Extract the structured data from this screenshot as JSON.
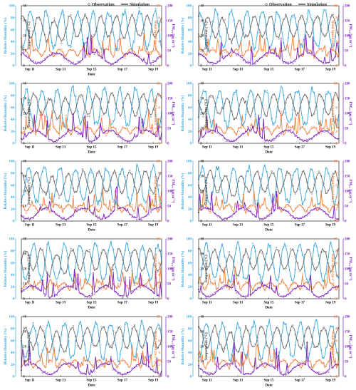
{
  "figure": {
    "legend": {
      "observation": "Observation",
      "simulation": "Simulation"
    },
    "colors": {
      "rh": "#3aa6dc",
      "temp": "#6b6b6b",
      "wind": "#f07f3c",
      "pm": "#7a1fb8",
      "axis": "#000000"
    }
  },
  "chart_data": [
    {
      "type": "line",
      "xlabel": "Date",
      "x_categories": [
        "Sep 11",
        "Sep 13",
        "Sep 15",
        "Sep 17",
        "Sep 19"
      ],
      "axes": {
        "rh": {
          "label": "Relative Humidity (%)",
          "range": [
            0,
            100
          ],
          "ticks": [
            0,
            20,
            40,
            60,
            80,
            100
          ]
        },
        "temp": {
          "label": "Temperature (°C)",
          "range": [
            0,
            40
          ],
          "ticks": [
            0,
            10,
            20,
            30,
            40
          ]
        },
        "wind": {
          "label": "Wind Speed (m s⁻¹)",
          "range": [
            0,
            10
          ],
          "ticks": [
            0,
            2,
            4,
            6,
            8,
            10
          ]
        },
        "pm": {
          "label": "PM₂.₅ (μg m⁻³)",
          "range": [
            0,
            200
          ],
          "ticks": [
            0,
            50,
            100,
            150,
            200
          ]
        }
      },
      "series": [
        {
          "name": "Observation",
          "style": "markers"
        },
        {
          "name": "Simulation",
          "style": "line"
        }
      ]
    },
    {
      "type": "line",
      "xlabel": "",
      "x_categories": [
        "Sep 11",
        "Sep 13",
        "Sep 15",
        "Sep 17",
        "Sep 19"
      ],
      "axes": {
        "rh": {
          "label": "Relative Humidity (%)",
          "range": [
            0,
            100
          ],
          "ticks": [
            0,
            20,
            40,
            60,
            80,
            100
          ]
        },
        "temp": {
          "label": "Temperature (°C)",
          "range": [
            0,
            40
          ],
          "ticks": [
            0,
            10,
            20,
            30,
            40
          ]
        },
        "wind": {
          "label": "Wind Speed (m s⁻¹)",
          "range": [
            0,
            10
          ],
          "ticks": [
            0,
            2,
            4,
            6,
            8,
            10
          ]
        },
        "pm": {
          "label": "PM₂.₅ (μg m⁻³)",
          "range": [
            0,
            200
          ],
          "ticks": [
            0,
            50,
            100,
            150,
            200
          ]
        }
      },
      "series": [
        {
          "name": "Observation",
          "style": "markers"
        },
        {
          "name": "Simulation",
          "style": "line"
        }
      ]
    },
    {
      "type": "line",
      "xlabel": "Date",
      "x_categories": [
        "Sep 11",
        "Sep 13",
        "Sep 15",
        "Sep 17",
        "Sep 19"
      ],
      "axes": {
        "rh": {
          "label": "Relative Humidity (%)",
          "range": [
            0,
            100
          ],
          "ticks": [
            0,
            20,
            40,
            60,
            80,
            100
          ]
        },
        "temp": {
          "label": "Temperature (°C)",
          "range": [
            0,
            40
          ],
          "ticks": [
            0,
            10,
            20,
            30,
            40
          ]
        },
        "wind": {
          "label": "Wind Speed (m s⁻¹)",
          "range": [
            0,
            10
          ],
          "ticks": [
            0,
            2,
            4,
            6,
            8,
            10
          ]
        },
        "pm": {
          "label": "PM₂.₅ (μg m⁻³)",
          "range": [
            0,
            200
          ],
          "ticks": [
            0,
            50,
            100,
            150,
            200
          ]
        }
      },
      "series": [
        {
          "name": "Observation",
          "style": "markers"
        },
        {
          "name": "Simulation",
          "style": "line"
        }
      ]
    },
    {
      "type": "line",
      "xlabel": "Date",
      "x_categories": [
        "Sep 11",
        "Sep 13",
        "Sep 15",
        "Sep 17",
        "Sep 19"
      ],
      "axes": {
        "rh": {
          "label": "Relative Humidity (%)",
          "range": [
            0,
            100
          ],
          "ticks": [
            0,
            20,
            40,
            60,
            80,
            100
          ]
        },
        "temp": {
          "label": "Temperature (°C)",
          "range": [
            0,
            40
          ],
          "ticks": [
            0,
            10,
            20,
            30,
            40
          ]
        },
        "wind": {
          "label": "Wind Speed (m s⁻¹)",
          "range": [
            0,
            10
          ],
          "ticks": [
            0,
            2,
            4,
            6,
            8,
            10
          ]
        },
        "pm": {
          "label": "PM₂.₅ (μg m⁻³)",
          "range": [
            0,
            200
          ],
          "ticks": [
            0,
            50,
            100,
            150,
            200
          ]
        }
      },
      "series": [
        {
          "name": "Observation",
          "style": "markers"
        },
        {
          "name": "Simulation",
          "style": "line"
        }
      ]
    },
    {
      "type": "line",
      "xlabel": "Date",
      "x_categories": [
        "Sep 11",
        "Sep 13",
        "Sep 15",
        "Sep 17",
        "Sep 19"
      ],
      "axes": {
        "rh": {
          "label": "Relative Humidity (%)",
          "range": [
            0,
            100
          ],
          "ticks": [
            0,
            20,
            40,
            60,
            80,
            100
          ]
        },
        "temp": {
          "label": "Temperature (°C)",
          "range": [
            0,
            40
          ],
          "ticks": [
            0,
            10,
            20,
            30,
            40
          ]
        },
        "wind": {
          "label": "Wind Speed (m s⁻¹)",
          "range": [
            0,
            10
          ],
          "ticks": [
            0,
            2,
            4,
            6,
            8,
            10
          ]
        },
        "pm": {
          "label": "PM₂.₅ (μg m⁻³)",
          "range": [
            0,
            200
          ],
          "ticks": [
            0,
            50,
            100,
            150,
            200
          ]
        }
      },
      "series": [
        {
          "name": "Observation",
          "style": "markers"
        },
        {
          "name": "Simulation",
          "style": "line"
        }
      ]
    },
    {
      "type": "line",
      "xlabel": "Date",
      "x_categories": [
        "Sep 11",
        "Sep 13",
        "Sep 15",
        "Sep 17",
        "Sep 19"
      ],
      "axes": {
        "rh": {
          "label": "Relative Humidity (%)",
          "range": [
            0,
            100
          ],
          "ticks": [
            0,
            20,
            40,
            60,
            80,
            100
          ]
        },
        "temp": {
          "label": "Temperature (°C)",
          "range": [
            0,
            40
          ],
          "ticks": [
            0,
            10,
            20,
            30,
            40
          ]
        },
        "wind": {
          "label": "Wind Speed (m s⁻¹)",
          "range": [
            0,
            10
          ],
          "ticks": [
            0,
            2,
            4,
            6,
            8,
            10
          ]
        },
        "pm": {
          "label": "PM₂.₅ (μg m⁻³)",
          "range": [
            0,
            200
          ],
          "ticks": [
            0,
            50,
            100,
            150,
            200
          ]
        }
      },
      "series": [
        {
          "name": "Observation",
          "style": "markers"
        },
        {
          "name": "Simulation",
          "style": "line"
        }
      ]
    },
    {
      "type": "line",
      "xlabel": "Date",
      "x_categories": [
        "Sep 11",
        "Sep 13",
        "Sep 15",
        "Sep 17",
        "Sep 19"
      ],
      "axes": {
        "rh": {
          "label": "Relative Humidity (%)",
          "range": [
            0,
            100
          ],
          "ticks": [
            0,
            20,
            40,
            60,
            80,
            100
          ]
        },
        "temp": {
          "label": "Temperature (°C)",
          "range": [
            0,
            40
          ],
          "ticks": [
            0,
            10,
            20,
            30,
            40
          ]
        },
        "wind": {
          "label": "Wind Speed (m s⁻¹)",
          "range": [
            0,
            10
          ],
          "ticks": [
            0,
            2,
            4,
            6,
            8,
            10
          ]
        },
        "pm": {
          "label": "PM₂.₅ (μg m⁻³)",
          "range": [
            0,
            200
          ],
          "ticks": [
            0,
            50,
            100,
            150,
            200
          ]
        }
      },
      "series": [
        {
          "name": "Observation",
          "style": "markers"
        },
        {
          "name": "Simulation",
          "style": "line"
        }
      ]
    },
    {
      "type": "line",
      "xlabel": "Date",
      "x_categories": [
        "Sep 11",
        "Sep 13",
        "Sep 15",
        "Sep 17",
        "Sep 19"
      ],
      "axes": {
        "rh": {
          "label": "Relative Humidity (%)",
          "range": [
            0,
            100
          ],
          "ticks": [
            0,
            20,
            40,
            60,
            80,
            100
          ]
        },
        "temp": {
          "label": "Temperature (°C)",
          "range": [
            0,
            40
          ],
          "ticks": [
            0,
            10,
            20,
            30,
            40
          ]
        },
        "wind": {
          "label": "Wind Speed (m s⁻¹)",
          "range": [
            0,
            10
          ],
          "ticks": [
            0,
            2,
            4,
            6,
            8,
            10
          ]
        },
        "pm": {
          "label": "PM₂.₅ (μg m⁻³)",
          "range": [
            0,
            200
          ],
          "ticks": [
            0,
            50,
            100,
            150,
            200
          ]
        }
      },
      "series": [
        {
          "name": "Observation",
          "style": "markers"
        },
        {
          "name": "Simulation",
          "style": "line"
        }
      ]
    },
    {
      "type": "line",
      "xlabel": "Date",
      "x_categories": [
        "Sep 11",
        "Sep 13",
        "Sep 15",
        "Sep 17",
        "Sep 19"
      ],
      "axes": {
        "rh": {
          "label": "Relative Humidity (%)",
          "range": [
            0,
            100
          ],
          "ticks": [
            0,
            20,
            40,
            60,
            80,
            100
          ]
        },
        "temp": {
          "label": "Temperature (°C)",
          "range": [
            0,
            40
          ],
          "ticks": [
            0,
            10,
            20,
            30,
            40
          ]
        },
        "wind": {
          "label": "Wind Speed (m s⁻¹)",
          "range": [
            0,
            10
          ],
          "ticks": [
            0,
            2,
            4,
            6,
            8,
            10
          ]
        },
        "pm": {
          "label": "PM₂.₅ (μg m⁻³)",
          "range": [
            0,
            200
          ],
          "ticks": [
            0,
            50,
            100,
            150,
            200
          ]
        }
      },
      "series": [
        {
          "name": "Observation",
          "style": "markers"
        },
        {
          "name": "Simulation",
          "style": "line"
        }
      ]
    },
    {
      "type": "line",
      "xlabel": "Date",
      "x_categories": [
        "Sep 11",
        "Sep 13",
        "Sep 15",
        "Sep 17",
        "Sep 19"
      ],
      "axes": {
        "rh": {
          "label": "Relative Humidity (%)",
          "range": [
            0,
            100
          ],
          "ticks": [
            0,
            20,
            40,
            60,
            80,
            100
          ]
        },
        "temp": {
          "label": "Temperature (°C)",
          "range": [
            0,
            40
          ],
          "ticks": [
            0,
            10,
            20,
            30,
            40
          ]
        },
        "wind": {
          "label": "Wind Speed (m s⁻¹)",
          "range": [
            0,
            10
          ],
          "ticks": [
            0,
            2,
            4,
            6,
            8,
            10
          ]
        },
        "pm": {
          "label": "PM₂.₅ (μg m⁻³)",
          "range": [
            0,
            200
          ],
          "ticks": [
            0,
            50,
            100,
            150,
            200
          ]
        }
      },
      "series": [
        {
          "name": "Observation",
          "style": "markers"
        },
        {
          "name": "Simulation",
          "style": "line"
        }
      ]
    }
  ]
}
